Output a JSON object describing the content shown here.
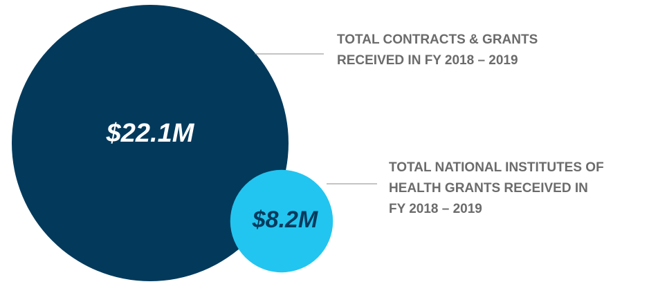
{
  "chart_data": {
    "type": "bubble",
    "categories": [
      [
        "TOTAL CONTRACTS & GRANTS",
        "RECEIVED IN FY 2018 – 2019"
      ],
      [
        "TOTAL NATIONAL INSTITUTES OF",
        "HEALTH GRANTS RECEIVED IN",
        "FY 2018 – 2019"
      ]
    ],
    "values": [
      22.1,
      8.2
    ],
    "value_labels": [
      "$22.1M",
      "$8.2M"
    ],
    "colors": [
      "#033a5c",
      "#22c5f0"
    ]
  }
}
